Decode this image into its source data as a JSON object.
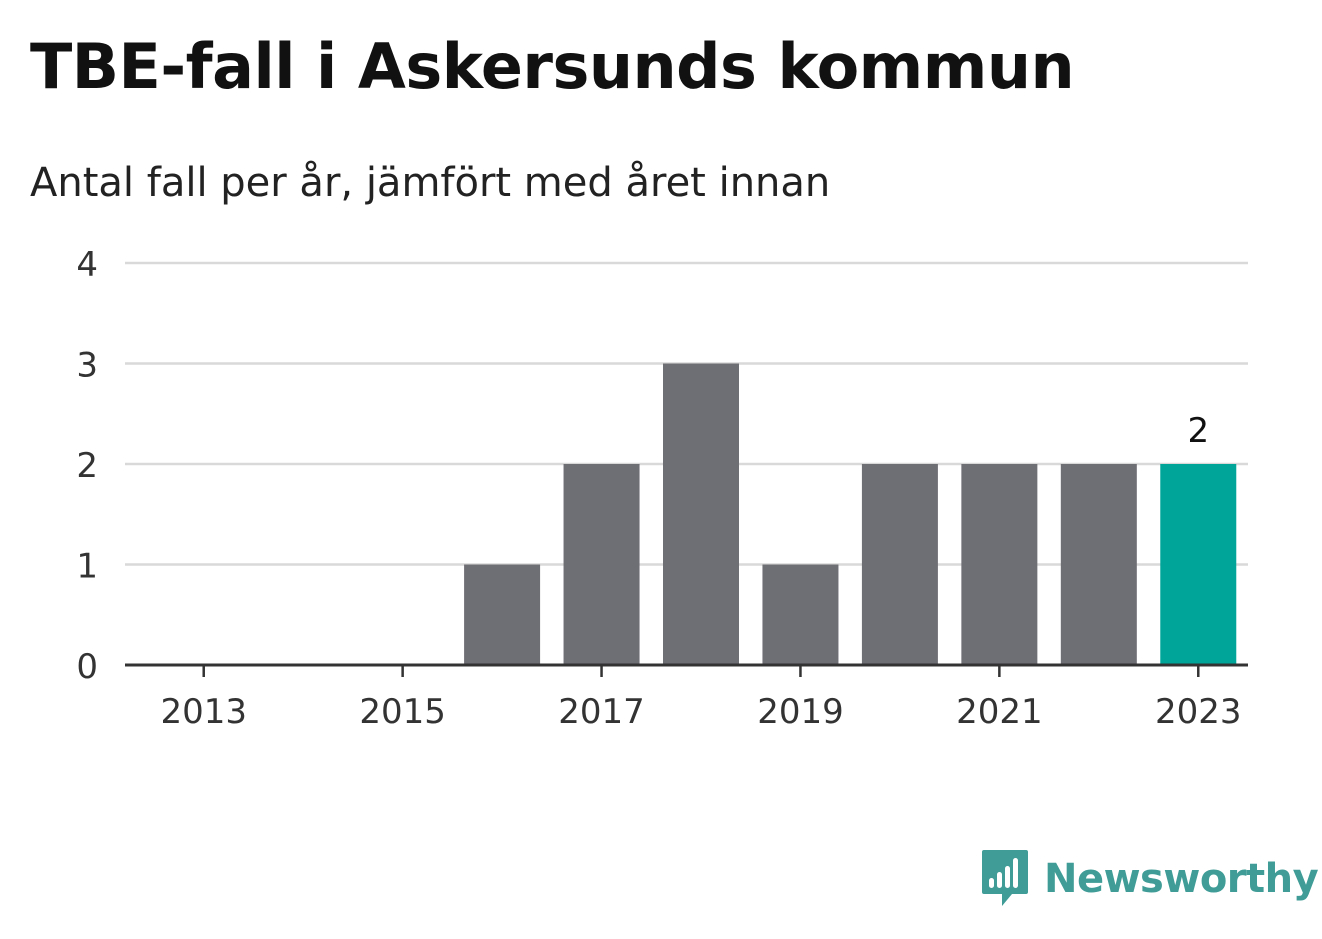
{
  "title": "TBE-fall i Askersunds kommun",
  "subtitle": "Antal fall per år, jämfört med året innan",
  "brand": {
    "name": "Newsworthy",
    "color": "#3f9c96",
    "icon": "newsworthy-chart-bubble-icon"
  },
  "colors": {
    "bar": "#6e6e75",
    "highlight": "#00a59a",
    "grid": "#d9d9d9",
    "axis": "#333333"
  },
  "chart_data": {
    "type": "bar",
    "categories": [
      "2013",
      "2014",
      "2015",
      "2016",
      "2017",
      "2018",
      "2019",
      "2020",
      "2021",
      "2022",
      "2023"
    ],
    "values": [
      0,
      0,
      0,
      1,
      2,
      3,
      1,
      2,
      2,
      2,
      2
    ],
    "highlight_category": "2023",
    "highlight_label": "2",
    "x_tick_labels": [
      "2013",
      "2015",
      "2017",
      "2019",
      "2021",
      "2023"
    ],
    "y_ticks": [
      "0",
      "1",
      "2",
      "3",
      "4"
    ],
    "ylim": [
      0,
      4
    ],
    "grid": true
  }
}
